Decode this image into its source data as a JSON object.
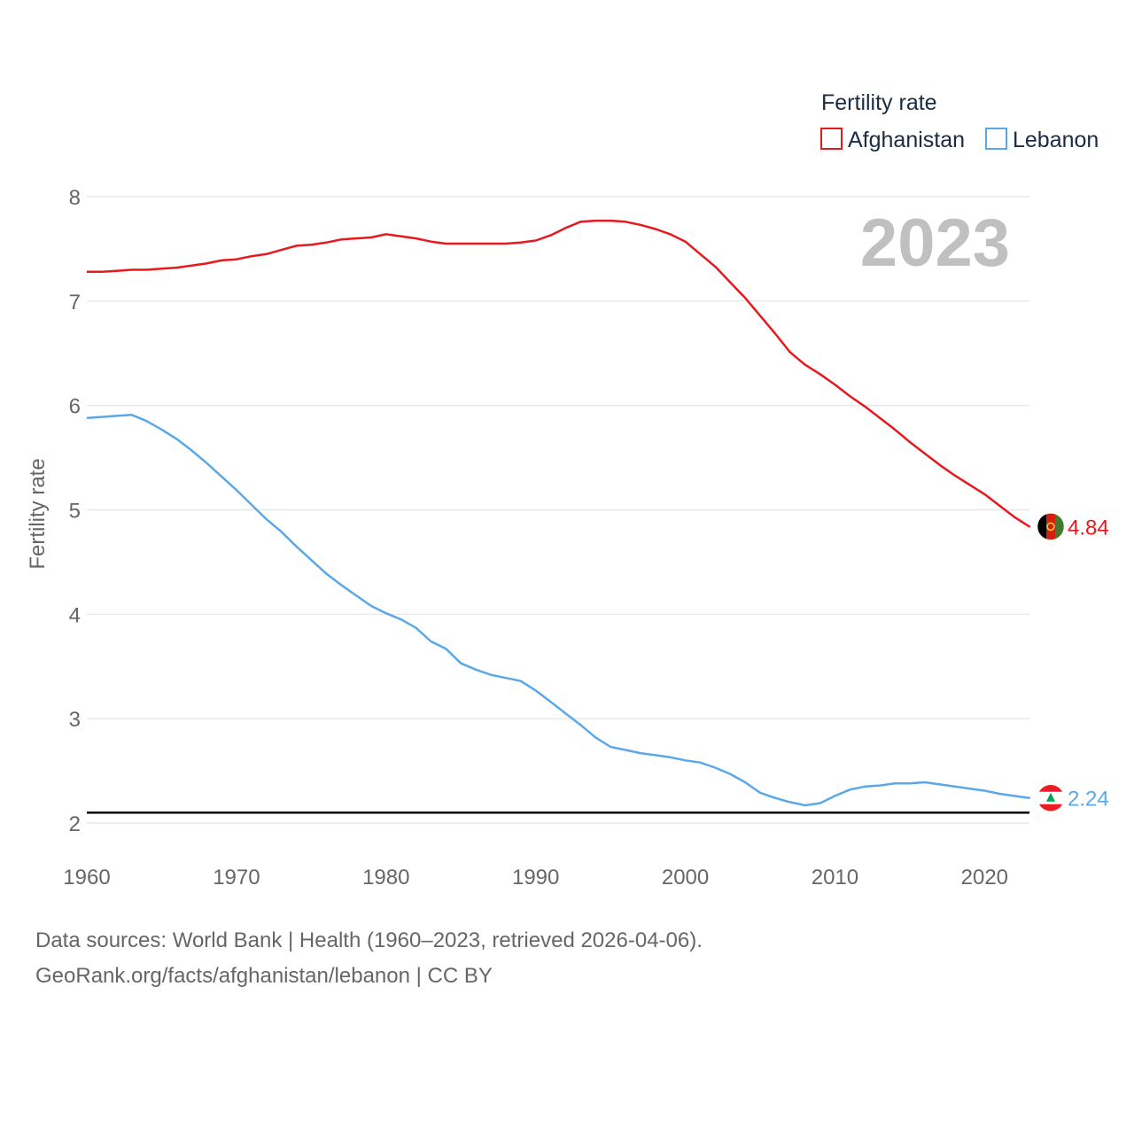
{
  "chart_data": {
    "type": "line",
    "title": "",
    "xlabel": "",
    "ylabel": "Fertility rate",
    "xlim": [
      1960,
      2023
    ],
    "ylim": [
      2,
      8
    ],
    "yticks": [
      2,
      3,
      4,
      5,
      6,
      7,
      8
    ],
    "xticks": [
      1960,
      1970,
      1980,
      1990,
      2000,
      2010,
      2020
    ],
    "grid": true,
    "year_label": "2023",
    "legend": {
      "title": "Fertility rate",
      "position": "top-right"
    },
    "reference_line": {
      "y": 2.1,
      "color": "#000000"
    },
    "x": [
      1960,
      1961,
      1962,
      1963,
      1964,
      1965,
      1966,
      1967,
      1968,
      1969,
      1970,
      1971,
      1972,
      1973,
      1974,
      1975,
      1976,
      1977,
      1978,
      1979,
      1980,
      1981,
      1982,
      1983,
      1984,
      1985,
      1986,
      1987,
      1988,
      1989,
      1990,
      1991,
      1992,
      1993,
      1994,
      1995,
      1996,
      1997,
      1998,
      1999,
      2000,
      2001,
      2002,
      2003,
      2004,
      2005,
      2006,
      2007,
      2008,
      2009,
      2010,
      2011,
      2012,
      2013,
      2014,
      2015,
      2016,
      2017,
      2018,
      2019,
      2020,
      2021,
      2022,
      2023
    ],
    "series": [
      {
        "name": "Afghanistan",
        "color": "#e8191e",
        "end_label": "4.84",
        "values": [
          7.28,
          7.28,
          7.29,
          7.3,
          7.3,
          7.31,
          7.32,
          7.34,
          7.36,
          7.39,
          7.4,
          7.43,
          7.45,
          7.49,
          7.53,
          7.54,
          7.56,
          7.59,
          7.6,
          7.61,
          7.64,
          7.62,
          7.6,
          7.57,
          7.55,
          7.55,
          7.55,
          7.55,
          7.55,
          7.56,
          7.58,
          7.63,
          7.7,
          7.76,
          7.77,
          7.77,
          7.76,
          7.73,
          7.69,
          7.64,
          7.57,
          7.45,
          7.33,
          7.18,
          7.03,
          6.86,
          6.69,
          6.51,
          6.39,
          6.3,
          6.2,
          6.09,
          5.99,
          5.88,
          5.77,
          5.65,
          5.54,
          5.43,
          5.33,
          5.24,
          5.15,
          5.04,
          4.93,
          4.84
        ]
      },
      {
        "name": "Lebanon",
        "color": "#5ba8e8",
        "end_label": "2.24",
        "values": [
          5.88,
          5.89,
          5.9,
          5.91,
          5.85,
          5.77,
          5.68,
          5.57,
          5.45,
          5.32,
          5.19,
          5.05,
          4.91,
          4.79,
          4.65,
          4.52,
          4.39,
          4.28,
          4.18,
          4.08,
          4.01,
          3.95,
          3.87,
          3.74,
          3.67,
          3.53,
          3.47,
          3.42,
          3.39,
          3.36,
          3.27,
          3.16,
          3.05,
          2.94,
          2.82,
          2.73,
          2.7,
          2.67,
          2.65,
          2.63,
          2.6,
          2.58,
          2.53,
          2.47,
          2.39,
          2.29,
          2.24,
          2.2,
          2.17,
          2.19,
          2.26,
          2.32,
          2.35,
          2.36,
          2.38,
          2.38,
          2.39,
          2.37,
          2.35,
          2.33,
          2.31,
          2.28,
          2.26,
          2.24
        ]
      }
    ]
  },
  "source": {
    "line1": "Data sources: World Bank | Health (1960–2023, retrieved 2026-04-06).",
    "line2": "GeoRank.org/facts/afghanistan/lebanon | CC BY"
  }
}
